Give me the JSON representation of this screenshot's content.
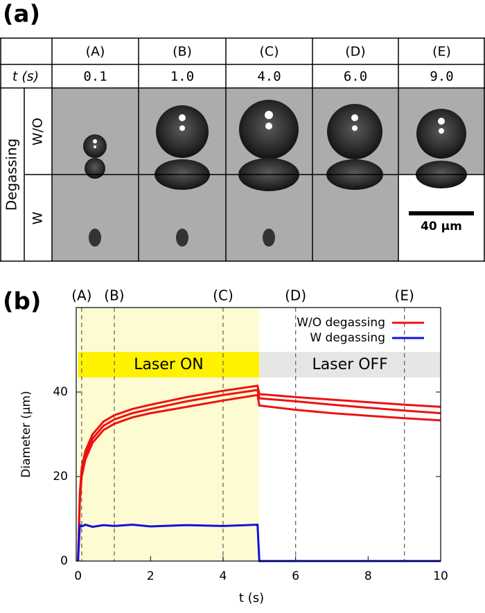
{
  "panel_a": {
    "label": "(a)",
    "columns": [
      "(A)",
      "(B)",
      "(C)",
      "(D)",
      "(E)"
    ],
    "time_row": {
      "label": "t (s)",
      "values": [
        "0.1",
        "1.0",
        "4.0",
        "6.0",
        "9.0"
      ]
    },
    "group_label": "Degassing",
    "rows": [
      "W/O",
      "W"
    ],
    "scale_bar": "40 µm"
  },
  "chart_data": {
    "type": "line",
    "panel_label": "(b)",
    "x_label": "t (s)",
    "y_label": "Diameter (µm)",
    "x": [
      0,
      0.05,
      0.1,
      0.2,
      0.4,
      0.7,
      1,
      1.5,
      2,
      3,
      4,
      4.95,
      5,
      6,
      7,
      8,
      9,
      10
    ],
    "series": [
      {
        "name": "W/O degassing",
        "color": "#ee1111",
        "values": [
          0,
          16,
          22,
          26,
          30,
          33,
          34.5,
          36,
          37,
          38.8,
          40.3,
          41.5,
          39.5,
          38.8,
          38.2,
          37.6,
          37,
          36.5
        ]
      },
      {
        "color": "#ee1111",
        "values": [
          0,
          15,
          21,
          25,
          29,
          32,
          33.5,
          35,
          36,
          37.8,
          39.3,
          40.5,
          38.5,
          37.8,
          37,
          36.3,
          35.6,
          35
        ]
      },
      {
        "color": "#ee1111",
        "values": [
          0,
          14,
          20,
          24,
          28,
          31,
          32.5,
          34,
          35,
          36.5,
          38,
          39.3,
          36.8,
          35.8,
          35,
          34.4,
          33.8,
          33.3
        ]
      },
      {
        "name": "W degassing",
        "color": "#1111dd",
        "values": [
          0,
          8.5,
          8.2,
          8.6,
          8.1,
          8.5,
          8.3,
          8.6,
          8.2,
          8.5,
          8.3,
          8.6,
          0,
          0,
          0,
          0,
          0,
          0
        ]
      }
    ],
    "xlim": [
      -0.05,
      10
    ],
    "ylim": [
      0,
      60
    ],
    "xticks": [
      0,
      2,
      4,
      6,
      8,
      10
    ],
    "yticks": [
      0,
      20,
      40
    ],
    "markers": [
      {
        "label": "(A)",
        "x": 0.1
      },
      {
        "label": "(B)",
        "x": 1
      },
      {
        "label": "(C)",
        "x": 4
      },
      {
        "label": "(D)",
        "x": 6
      },
      {
        "label": "(E)",
        "x": 9
      }
    ],
    "regions": [
      {
        "label": "Laser ON",
        "x0": 0,
        "x1": 5,
        "color": "#fdfbd2",
        "band_color": "#fff200"
      },
      {
        "label": "Laser OFF",
        "x0": 5,
        "x1": 10,
        "color": "#ffffff",
        "band_color": "#e6e6e6"
      }
    ],
    "legend": "upper right"
  }
}
